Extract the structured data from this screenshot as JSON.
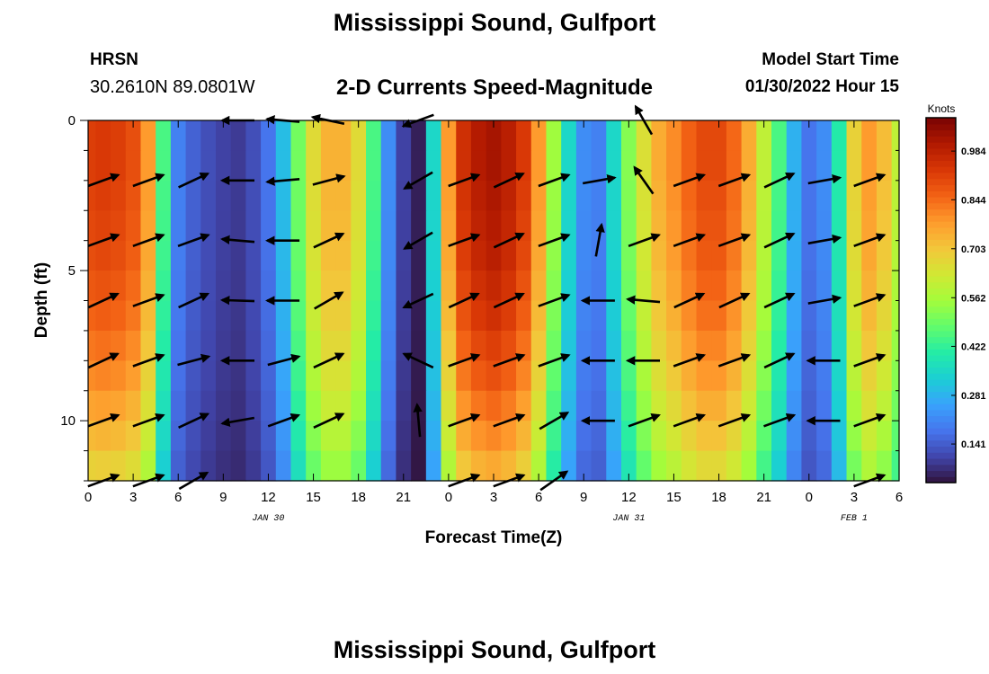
{
  "header": {
    "title": "Mississippi Sound, Gulfport",
    "station_code": "HRSN",
    "station_coords": "30.2610N  89.0801W",
    "subtitle": "2-D Currents Speed-Magnitude",
    "model_label": "Model Start Time",
    "model_value": "01/30/2022 Hour 15"
  },
  "footer": {
    "title": "Mississippi Sound, Gulfport"
  },
  "chart_data": {
    "type": "heatmap",
    "title": "2-D Currents Speed-Magnitude",
    "xlabel": "Forecast Time(Z)",
    "ylabel": "Depth (ft)",
    "x_ticks": [
      "0",
      "3",
      "6",
      "9",
      "12",
      "15",
      "18",
      "21",
      "0",
      "3",
      "6",
      "9",
      "12",
      "15",
      "18",
      "21",
      "0",
      "3",
      "6"
    ],
    "x_range_hours": [
      0,
      54
    ],
    "y_ticks": [
      "0",
      "5",
      "10"
    ],
    "y_range_ft": [
      0,
      12
    ],
    "date_labels": [
      {
        "text": "JAN 30",
        "hour": 12
      },
      {
        "text": "JAN 31",
        "hour": 36
      },
      {
        "text": "FEB 1",
        "hour": 51
      }
    ],
    "colorbar": {
      "unit": "Knots",
      "ticks": [
        "0.984",
        "0.844",
        "0.703",
        "0.562",
        "0.422",
        "0.281",
        "0.141"
      ],
      "min": 0.03,
      "max": 1.08,
      "colors": [
        "#30123b",
        "#4145ab",
        "#4675ed",
        "#39a2fc",
        "#1bcfd4",
        "#24eca6",
        "#61fc6c",
        "#a4fc3b",
        "#d1e834",
        "#f3c63a",
        "#fe9b2d",
        "#f36315",
        "#d93806",
        "#b11901",
        "#7a0403"
      ]
    },
    "speed_profile_hours": [
      0,
      1,
      2,
      3,
      4,
      5,
      6,
      7,
      8,
      9,
      10,
      11,
      12,
      13,
      14,
      15,
      16,
      17,
      18,
      19,
      20,
      21,
      22,
      23,
      24,
      25,
      26,
      27,
      28,
      29,
      30,
      31,
      32,
      33,
      34,
      35,
      36,
      37,
      38,
      39,
      40,
      41,
      42,
      43,
      44,
      45,
      46,
      47,
      48,
      49,
      50,
      51,
      52,
      53,
      54
    ],
    "speed_profile_knots": [
      0.92,
      0.93,
      0.92,
      0.89,
      0.78,
      0.45,
      0.2,
      0.15,
      0.12,
      0.1,
      0.09,
      0.12,
      0.18,
      0.3,
      0.5,
      0.66,
      0.74,
      0.74,
      0.66,
      0.45,
      0.22,
      0.1,
      0.05,
      0.35,
      0.78,
      0.95,
      1.0,
      1.02,
      0.99,
      0.93,
      0.78,
      0.55,
      0.35,
      0.22,
      0.2,
      0.35,
      0.52,
      0.65,
      0.75,
      0.8,
      0.86,
      0.9,
      0.9,
      0.85,
      0.75,
      0.6,
      0.45,
      0.28,
      0.18,
      0.22,
      0.4,
      0.68,
      0.78,
      0.72,
      0.6
    ],
    "depth_factor_by_row": [
      1.0,
      1.0,
      0.99,
      0.98,
      0.97,
      0.95,
      0.93,
      0.9,
      0.87,
      0.83,
      0.79,
      0.74
    ],
    "vector_hours": [
      1,
      4,
      7,
      10,
      13,
      16,
      22,
      25,
      28,
      31,
      34,
      37,
      40,
      43,
      46,
      49,
      52
    ],
    "vector_depths_ft": [
      0,
      2,
      4,
      6,
      8,
      10,
      12
    ],
    "vector_angles_deg": [
      [
        null,
        null,
        null,
        180,
        175,
        168,
        200,
        null,
        null,
        null,
        null,
        120,
        null,
        null,
        null,
        null,
        null
      ],
      [
        20,
        20,
        25,
        180,
        185,
        15,
        210,
        20,
        25,
        20,
        10,
        125,
        20,
        20,
        25,
        10,
        20
      ],
      [
        20,
        20,
        20,
        175,
        180,
        25,
        210,
        20,
        25,
        20,
        80,
        20,
        20,
        20,
        25,
        10,
        20
      ],
      [
        25,
        20,
        25,
        178,
        180,
        30,
        205,
        25,
        25,
        20,
        180,
        175,
        25,
        25,
        25,
        10,
        20
      ],
      [
        25,
        20,
        15,
        180,
        15,
        25,
        155,
        20,
        20,
        20,
        180,
        180,
        20,
        20,
        25,
        180,
        20
      ],
      [
        20,
        20,
        25,
        190,
        20,
        25,
        95,
        20,
        20,
        30,
        180,
        20,
        20,
        20,
        20,
        180,
        20
      ],
      [
        20,
        20,
        30,
        null,
        null,
        null,
        null,
        20,
        20,
        35,
        null,
        null,
        null,
        null,
        null,
        null,
        20
      ]
    ]
  }
}
